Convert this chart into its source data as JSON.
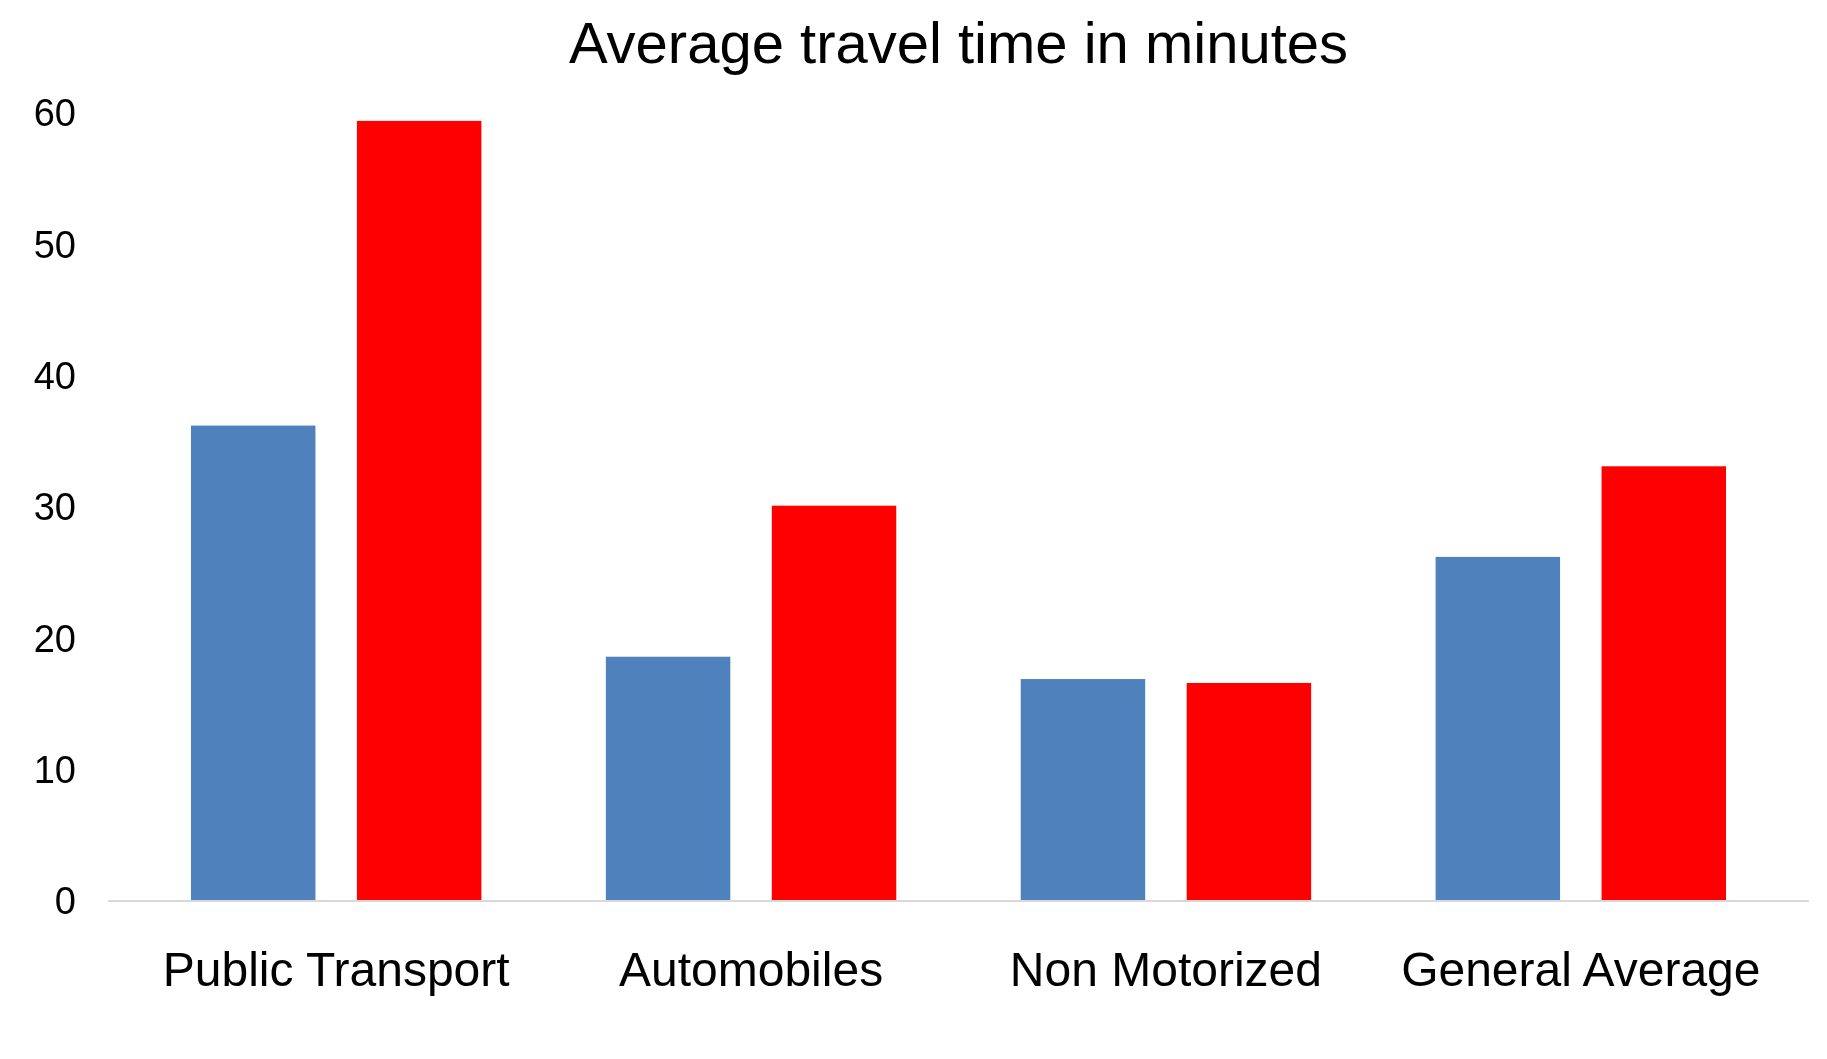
{
  "chart_data": {
    "type": "bar",
    "title": "Average travel time in minutes",
    "categories": [
      "Public Transport",
      "Automobiles",
      "Non Motorized",
      "General Average"
    ],
    "series": [
      {
        "color": "#4f81bd",
        "values": [
          36.2,
          18.6,
          16.9,
          26.2
        ]
      },
      {
        "color": "#ff0000",
        "values": [
          59.4,
          30.1,
          16.6,
          33.1
        ]
      }
    ],
    "ylim": [
      0,
      60
    ],
    "yticks": [
      0,
      10,
      20,
      30,
      40,
      50,
      60
    ],
    "grid": false
  }
}
